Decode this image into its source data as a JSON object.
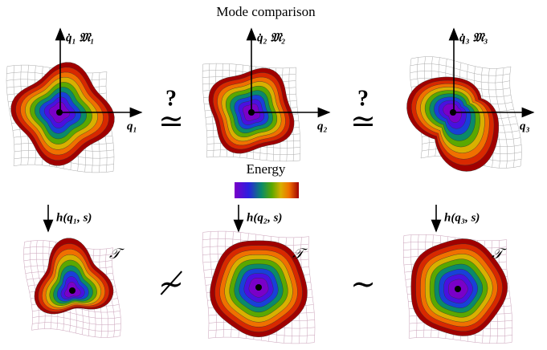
{
  "title": "Mode comparison",
  "legend": {
    "label": "Energy"
  },
  "panels": [
    {
      "velocity_label": "q̇₁ 𝔐₁",
      "position_label": "q₁",
      "map_label": "h(q₁, s)",
      "target_label": "𝒯"
    },
    {
      "velocity_label": "q̇₂ 𝔐₂",
      "position_label": "q₂",
      "map_label": "h(q₂, s)",
      "target_label": "𝒯"
    },
    {
      "velocity_label": "q̇₃ 𝔐₃",
      "position_label": "q₃",
      "map_label": "h(q₃, s)",
      "target_label": "𝒯"
    }
  ],
  "relations_top": [
    {
      "mark": "?",
      "symbol": "≃"
    },
    {
      "mark": "?",
      "symbol": "≃"
    }
  ],
  "relations_bottom": [
    "≁",
    "∼"
  ]
}
